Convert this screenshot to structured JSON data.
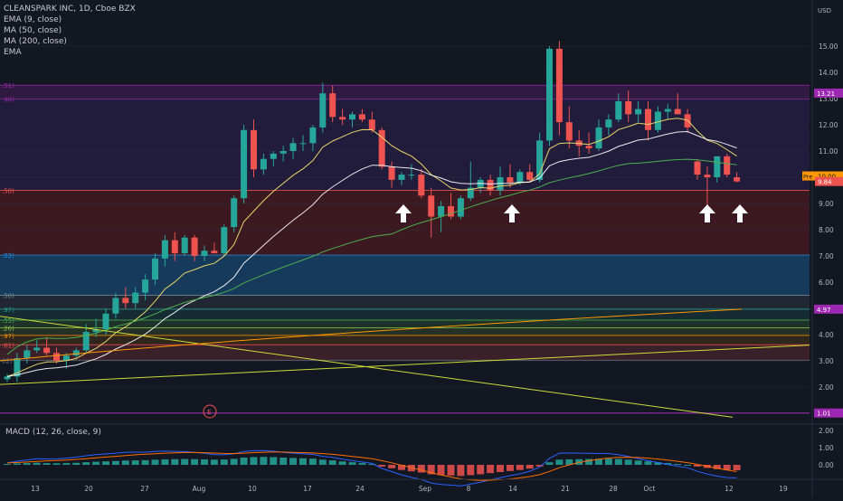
{
  "chart_data": {
    "type": "candlestick",
    "legend": {
      "symbol": "CLEANSPARK INC, 1D, Cboe BZX",
      "ind1": "EMA (9, close)",
      "ind2": "MA (50, close)",
      "ind3": "MA (200, close)",
      "ind4": "EMA"
    },
    "currency": "USD",
    "price_ticks": [
      "15.00",
      "14.00",
      "13.00",
      "12.00",
      "11.00",
      "10.00",
      "9.00",
      "8.00",
      "7.00",
      "6.00",
      "5.00",
      "4.00",
      "3.00",
      "2.00",
      "1.00"
    ],
    "x_ticks": [
      "13",
      "20",
      "27",
      "Aug",
      "10",
      "17",
      "24",
      "Sep",
      "8",
      "14",
      "21",
      "28",
      "Oct",
      "12",
      "19"
    ],
    "macd_legend": "MACD (12, 26, close, 9)",
    "macd_ticks": [
      "2.00",
      "1.00",
      "0.00"
    ],
    "price_labels": {
      "a": "13.21",
      "b": "Pre",
      "c": "10.00",
      "d": "9.84",
      "e": "4.97",
      "f": "1.01"
    },
    "fib_left_labels": [
      ".51)",
      ".98)",
      ".50)",
      ".03)",
      ".50)",
      ".97)",
      ".55)",
      ".26)",
      ".97)",
      ".61)",
      "02)"
    ],
    "event_label": "E",
    "fib_levels": [
      13.51,
      12.98,
      9.5,
      7.03,
      5.5,
      4.97,
      4.55,
      4.26,
      3.97,
      3.61,
      3.02
    ],
    "candles": [
      [
        2.3,
        2.5,
        2.2,
        2.4
      ],
      [
        2.4,
        3.3,
        2.2,
        3.1
      ],
      [
        3.1,
        3.6,
        2.9,
        3.4
      ],
      [
        3.4,
        3.8,
        3.3,
        3.5
      ],
      [
        3.5,
        3.9,
        3.2,
        3.3
      ],
      [
        3.3,
        3.5,
        2.9,
        3.0
      ],
      [
        3.0,
        3.3,
        2.7,
        3.2
      ],
      [
        3.2,
        3.5,
        3.1,
        3.4
      ],
      [
        3.4,
        4.4,
        3.3,
        4.1
      ],
      [
        4.1,
        4.6,
        3.9,
        4.2
      ],
      [
        4.2,
        5.0,
        4.0,
        4.8
      ],
      [
        4.8,
        5.6,
        4.6,
        5.4
      ],
      [
        5.4,
        5.8,
        5.0,
        5.2
      ],
      [
        5.2,
        5.8,
        5.0,
        5.6
      ],
      [
        5.6,
        6.3,
        5.3,
        6.1
      ],
      [
        6.1,
        7.1,
        5.9,
        6.9
      ],
      [
        6.9,
        7.8,
        6.6,
        7.6
      ],
      [
        7.6,
        7.9,
        6.8,
        7.1
      ],
      [
        7.1,
        7.8,
        7.0,
        7.7
      ],
      [
        7.7,
        7.8,
        6.8,
        7.0
      ],
      [
        7.0,
        7.4,
        6.8,
        7.2
      ],
      [
        7.2,
        7.5,
        7.1,
        7.1
      ],
      [
        7.1,
        8.2,
        7.0,
        8.1
      ],
      [
        8.1,
        9.3,
        7.9,
        9.2
      ],
      [
        9.2,
        12.0,
        9.0,
        11.8
      ],
      [
        11.8,
        12.2,
        10.0,
        10.3
      ],
      [
        10.3,
        10.9,
        10.1,
        10.7
      ],
      [
        10.7,
        11.0,
        10.4,
        10.9
      ],
      [
        10.9,
        11.2,
        10.6,
        11.0
      ],
      [
        11.0,
        11.5,
        10.7,
        11.3
      ],
      [
        11.3,
        11.6,
        11.0,
        11.3
      ],
      [
        11.3,
        12.0,
        11.0,
        11.9
      ],
      [
        11.9,
        13.6,
        11.7,
        13.2
      ],
      [
        13.2,
        13.5,
        12.1,
        12.3
      ],
      [
        12.3,
        12.6,
        12.0,
        12.2
      ],
      [
        12.2,
        12.5,
        11.9,
        12.4
      ],
      [
        12.4,
        12.6,
        12.1,
        12.2
      ],
      [
        12.2,
        12.5,
        11.7,
        11.8
      ],
      [
        11.8,
        11.9,
        10.3,
        10.4
      ],
      [
        10.4,
        10.6,
        9.6,
        9.9
      ],
      [
        9.9,
        10.2,
        9.7,
        10.1
      ],
      [
        10.1,
        10.5,
        9.9,
        10.1
      ],
      [
        10.1,
        10.3,
        9.2,
        9.3
      ],
      [
        9.3,
        9.6,
        7.7,
        8.5
      ],
      [
        8.5,
        9.1,
        7.9,
        8.9
      ],
      [
        8.9,
        9.4,
        8.4,
        8.5
      ],
      [
        8.5,
        9.3,
        8.4,
        9.2
      ],
      [
        9.2,
        10.6,
        9.1,
        9.6
      ],
      [
        9.6,
        10.0,
        9.4,
        9.9
      ],
      [
        9.9,
        10.1,
        9.3,
        9.5
      ],
      [
        9.5,
        10.4,
        9.3,
        10.0
      ],
      [
        10.0,
        10.5,
        9.6,
        9.8
      ],
      [
        9.8,
        10.3,
        9.7,
        10.2
      ],
      [
        10.2,
        10.5,
        9.8,
        9.9
      ],
      [
        9.9,
        11.7,
        9.8,
        11.4
      ],
      [
        11.4,
        15.0,
        11.2,
        14.9
      ],
      [
        14.9,
        15.2,
        11.6,
        12.1
      ],
      [
        12.1,
        12.7,
        11.1,
        11.4
      ],
      [
        11.4,
        11.8,
        10.8,
        11.2
      ],
      [
        11.2,
        11.7,
        10.9,
        11.1
      ],
      [
        11.1,
        12.2,
        11.0,
        11.9
      ],
      [
        11.9,
        12.4,
        11.6,
        12.2
      ],
      [
        12.2,
        13.2,
        12.1,
        12.9
      ],
      [
        12.9,
        13.3,
        12.1,
        12.4
      ],
      [
        12.4,
        12.9,
        12.1,
        12.6
      ],
      [
        12.6,
        12.9,
        11.4,
        11.8
      ],
      [
        11.8,
        12.7,
        11.7,
        12.5
      ],
      [
        12.5,
        12.8,
        12.2,
        12.6
      ],
      [
        12.6,
        13.2,
        12.4,
        12.4
      ],
      [
        12.4,
        12.6,
        11.7,
        11.9
      ],
      [
        10.6,
        10.7,
        9.9,
        10.1
      ],
      [
        10.1,
        10.4,
        8.6,
        10.0
      ],
      [
        10.0,
        10.8,
        9.8,
        10.8
      ],
      [
        10.8,
        10.9,
        10.0,
        10.1
      ],
      [
        10.0,
        10.2,
        9.8,
        9.84
      ]
    ],
    "macd_hist": [
      0.05,
      0.08,
      0.1,
      0.12,
      0.1,
      0.09,
      0.1,
      0.12,
      0.15,
      0.18,
      0.2,
      0.22,
      0.25,
      0.26,
      0.27,
      0.3,
      0.32,
      0.33,
      0.34,
      0.33,
      0.32,
      0.3,
      0.31,
      0.35,
      0.42,
      0.45,
      0.46,
      0.45,
      0.42,
      0.4,
      0.38,
      0.36,
      0.3,
      0.26,
      0.2,
      0.15,
      0.1,
      0.05,
      -0.1,
      -0.2,
      -0.3,
      -0.38,
      -0.45,
      -0.55,
      -0.6,
      -0.62,
      -0.65,
      -0.6,
      -0.55,
      -0.48,
      -0.42,
      -0.36,
      -0.3,
      -0.22,
      -0.1,
      0.15,
      0.3,
      0.32,
      0.33,
      0.34,
      0.35,
      0.36,
      0.34,
      0.3,
      0.25,
      0.2,
      0.15,
      0.1,
      0.05,
      0.0,
      -0.1,
      -0.18,
      -0.25,
      -0.3,
      -0.32
    ],
    "series_colors": {
      "up": "#26a69a",
      "down": "#ef5350",
      "ema9": "#e8d46a",
      "ma50": "#ffffff",
      "ma200": "#4caf50",
      "orange": "#ff9800",
      "yellow": "#cddc39",
      "macd": "#2962ff",
      "signal": "#ff6d00"
    }
  }
}
